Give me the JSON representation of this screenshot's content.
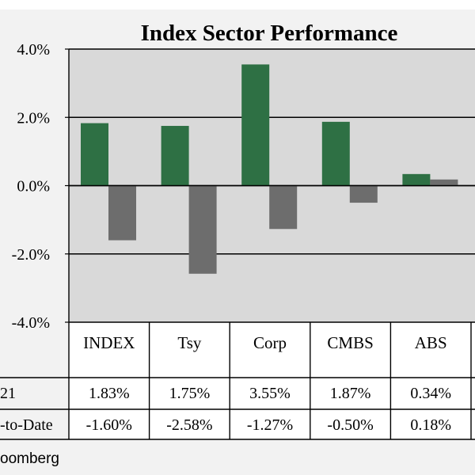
{
  "colors": {
    "background": "#f2f2f2",
    "plot_area": "#d9d9d9",
    "series_2021": "#2e7044",
    "series_ytd": "#6d6d6d"
  },
  "chart_data": {
    "type": "bar",
    "title": "Index Sector Performance",
    "categories": [
      "INDEX",
      "Tsy",
      "Corp",
      "CMBS",
      "ABS"
    ],
    "series": [
      {
        "name": "21",
        "values": [
          1.83,
          1.75,
          3.55,
          1.87,
          0.34
        ],
        "labels": [
          "1.83%",
          "1.75%",
          "3.55%",
          "1.87%",
          "0.34%"
        ]
      },
      {
        "name": "-to-Date",
        "values": [
          -1.6,
          -2.58,
          -1.27,
          -0.5,
          0.18
        ],
        "labels": [
          "-1.60%",
          "-2.58%",
          "-1.27%",
          "-0.50%",
          "0.18%"
        ]
      }
    ],
    "ylim": [
      -4.0,
      4.0
    ],
    "yticks": [
      "4.0%",
      "2.0%",
      "0.0%",
      "-2.0%",
      "-4.0%"
    ],
    "grid": true,
    "xlabel": "",
    "ylabel": ""
  },
  "source": "oomberg"
}
